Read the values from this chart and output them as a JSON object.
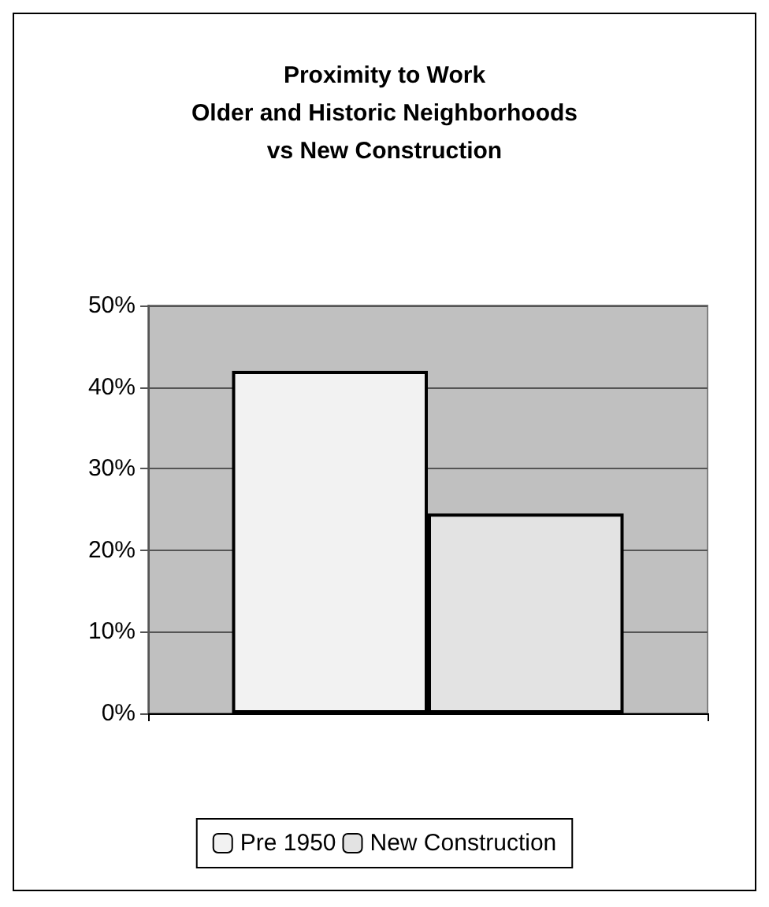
{
  "chart_data": {
    "type": "bar",
    "title": "Proximity to Work\nOlder and Historic Neighborhoods\nvs New Construction",
    "categories": [
      null
    ],
    "series": [
      {
        "name": "Pre 1950",
        "color": "#f2f2f2",
        "values": [
          42
        ]
      },
      {
        "name": "New Construction",
        "color": "#e3e3e3",
        "values": [
          24.5
        ]
      }
    ],
    "ylim": [
      0,
      50
    ],
    "yticks": [
      {
        "value": 0,
        "label": "0%"
      },
      {
        "value": 10,
        "label": "10%"
      },
      {
        "value": 20,
        "label": "20%"
      },
      {
        "value": 30,
        "label": "30%"
      },
      {
        "value": 40,
        "label": "40%"
      },
      {
        "value": 50,
        "label": "50%"
      }
    ],
    "grid": "y",
    "legend": "bottom"
  }
}
